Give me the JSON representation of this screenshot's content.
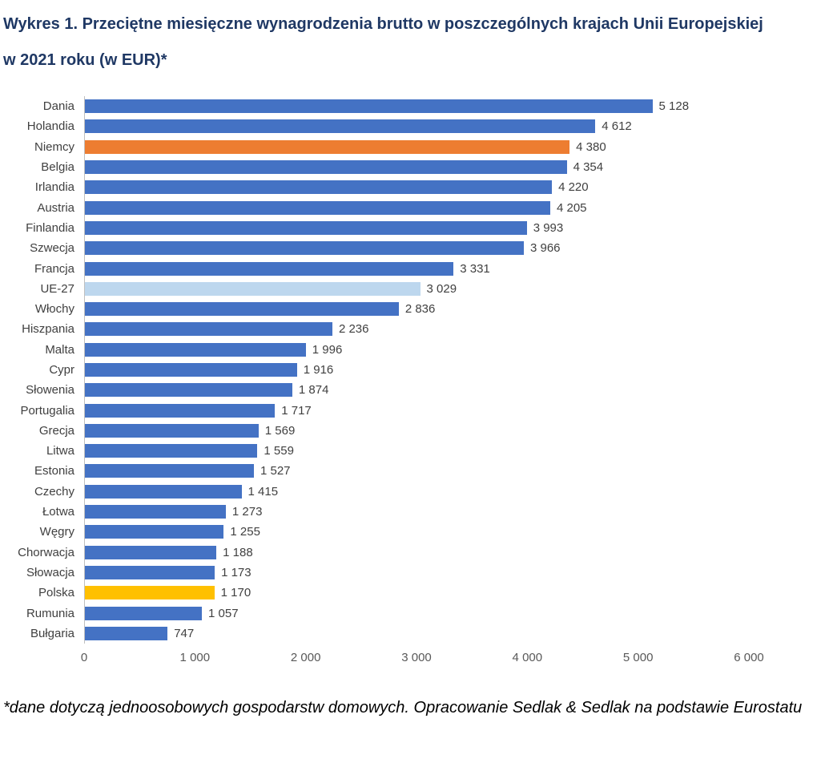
{
  "title": "Wykres 1. Przeciętne miesięczne wynagrodzenia brutto w poszczególnych krajach Unii Europejskiej w 2021 roku (w EUR)*",
  "footnote": "*dane dotyczą jednoosobowych gospodarstw domowych. Opracowanie Sedlak & Sedlak na podstawie Eurostatu",
  "colors": {
    "default_bar": "#4472C4",
    "highlight_germany_bar": "#ED7D31",
    "highlight_eu27_bar": "#BDD7EE",
    "highlight_poland_bar": "#FFC000",
    "title_text": "#1F3864",
    "axis_tick_text": "#595959",
    "axis_line": "#BFBFBF",
    "label_text": "#404040"
  },
  "chart_data": {
    "type": "bar",
    "orientation": "horizontal",
    "title": "Wykres 1. Przeciętne miesięczne wynagrodzenia brutto w poszczególnych krajach Unii Europejskiej w 2021 roku (w EUR)*",
    "xlabel": "",
    "ylabel": "",
    "xlim": [
      0,
      6000
    ],
    "grid": false,
    "legend": false,
    "x_ticks": [
      {
        "value": 0,
        "label": "0"
      },
      {
        "value": 1000,
        "label": "1 000"
      },
      {
        "value": 2000,
        "label": "2 000"
      },
      {
        "value": 3000,
        "label": "3 000"
      },
      {
        "value": 4000,
        "label": "4 000"
      },
      {
        "value": 5000,
        "label": "5 000"
      },
      {
        "value": 6000,
        "label": "6 000"
      }
    ],
    "points": [
      {
        "category": "Dania",
        "value": 5128,
        "value_label": "5 128",
        "color": "#4472C4"
      },
      {
        "category": "Holandia",
        "value": 4612,
        "value_label": "4 612",
        "color": "#4472C4"
      },
      {
        "category": "Niemcy",
        "value": 4380,
        "value_label": "4 380",
        "color": "#ED7D31"
      },
      {
        "category": "Belgia",
        "value": 4354,
        "value_label": "4 354",
        "color": "#4472C4"
      },
      {
        "category": "Irlandia",
        "value": 4220,
        "value_label": "4 220",
        "color": "#4472C4"
      },
      {
        "category": "Austria",
        "value": 4205,
        "value_label": "4 205",
        "color": "#4472C4"
      },
      {
        "category": "Finlandia",
        "value": 3993,
        "value_label": "3 993",
        "color": "#4472C4"
      },
      {
        "category": "Szwecja",
        "value": 3966,
        "value_label": "3 966",
        "color": "#4472C4"
      },
      {
        "category": "Francja",
        "value": 3331,
        "value_label": "3 331",
        "color": "#4472C4"
      },
      {
        "category": "UE-27",
        "value": 3029,
        "value_label": "3 029",
        "color": "#BDD7EE"
      },
      {
        "category": "Włochy",
        "value": 2836,
        "value_label": "2 836",
        "color": "#4472C4"
      },
      {
        "category": "Hiszpania",
        "value": 2236,
        "value_label": "2 236",
        "color": "#4472C4"
      },
      {
        "category": "Malta",
        "value": 1996,
        "value_label": "1 996",
        "color": "#4472C4"
      },
      {
        "category": "Cypr",
        "value": 1916,
        "value_label": "1 916",
        "color": "#4472C4"
      },
      {
        "category": "Słowenia",
        "value": 1874,
        "value_label": "1 874",
        "color": "#4472C4"
      },
      {
        "category": "Portugalia",
        "value": 1717,
        "value_label": "1 717",
        "color": "#4472C4"
      },
      {
        "category": "Grecja",
        "value": 1569,
        "value_label": "1 569",
        "color": "#4472C4"
      },
      {
        "category": "Litwa",
        "value": 1559,
        "value_label": "1 559",
        "color": "#4472C4"
      },
      {
        "category": "Estonia",
        "value": 1527,
        "value_label": "1 527",
        "color": "#4472C4"
      },
      {
        "category": "Czechy",
        "value": 1415,
        "value_label": "1 415",
        "color": "#4472C4"
      },
      {
        "category": "Łotwa",
        "value": 1273,
        "value_label": "1 273",
        "color": "#4472C4"
      },
      {
        "category": "Węgry",
        "value": 1255,
        "value_label": "1 255",
        "color": "#4472C4"
      },
      {
        "category": "Chorwacja",
        "value": 1188,
        "value_label": "1 188",
        "color": "#4472C4"
      },
      {
        "category": "Słowacja",
        "value": 1173,
        "value_label": "1 173",
        "color": "#4472C4"
      },
      {
        "category": "Polska",
        "value": 1170,
        "value_label": "1 170",
        "color": "#FFC000"
      },
      {
        "category": "Rumunia",
        "value": 1057,
        "value_label": "1 057",
        "color": "#4472C4"
      },
      {
        "category": "Bułgaria",
        "value": 747,
        "value_label": "747",
        "color": "#4472C4"
      }
    ]
  }
}
